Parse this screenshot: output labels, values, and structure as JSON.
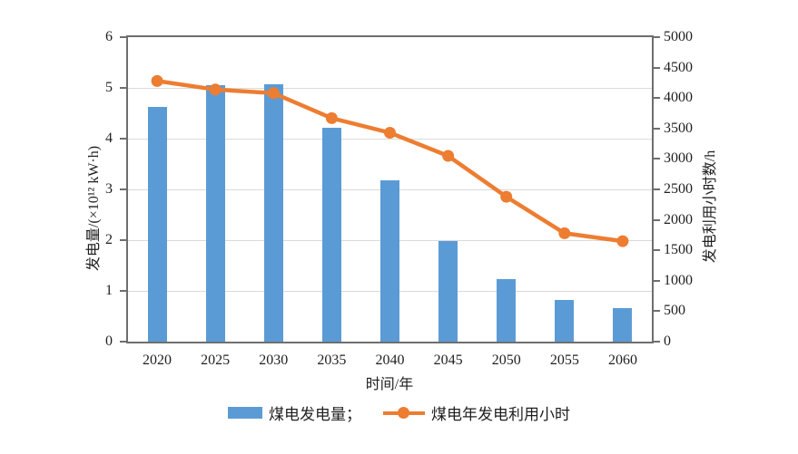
{
  "chart_data": {
    "type": "combo",
    "subtypes": [
      "bar",
      "line"
    ],
    "categories": [
      "2020",
      "2025",
      "2030",
      "2035",
      "2040",
      "2045",
      "2050",
      "2055",
      "2060"
    ],
    "series": [
      {
        "name": "煤电发电量",
        "type": "bar",
        "axis": "left",
        "color": "#5B9BD5",
        "values": [
          4.62,
          5.06,
          5.08,
          4.21,
          3.18,
          1.98,
          1.24,
          0.82,
          0.66
        ]
      },
      {
        "name": "煤电年发电利用小时",
        "type": "line",
        "axis": "right",
        "color": "#ED7D31",
        "values": [
          4280,
          4140,
          4080,
          3670,
          3430,
          3050,
          2380,
          1780,
          1650
        ]
      }
    ],
    "x_axis": {
      "label": "时间/年"
    },
    "left_axis": {
      "label": "发电量/(×10¹² kW·h)",
      "min": 0,
      "max": 6,
      "ticks": [
        0,
        1,
        2,
        3,
        4,
        5,
        6
      ]
    },
    "right_axis": {
      "label": "发电利用小时数/h",
      "min": 0,
      "max": 5000,
      "ticks": [
        0,
        500,
        1000,
        1500,
        2000,
        2500,
        3000,
        3500,
        4000,
        4500,
        5000
      ]
    },
    "grid": "horizontal",
    "legend_position": "bottom"
  },
  "legend": {
    "items": [
      {
        "label": "煤电发电量；",
        "marker": "bar-swatch",
        "color": "#5B9BD5"
      },
      {
        "label": "煤电年发电利用小时",
        "marker": "line-dot",
        "color": "#ED7D31"
      }
    ]
  },
  "colors": {
    "bar": "#5B9BD5",
    "line": "#ED7D31",
    "axis": "#6e6e6e",
    "gridline": "#dadada",
    "text": "#1f1f1f",
    "background": "#ffffff"
  }
}
